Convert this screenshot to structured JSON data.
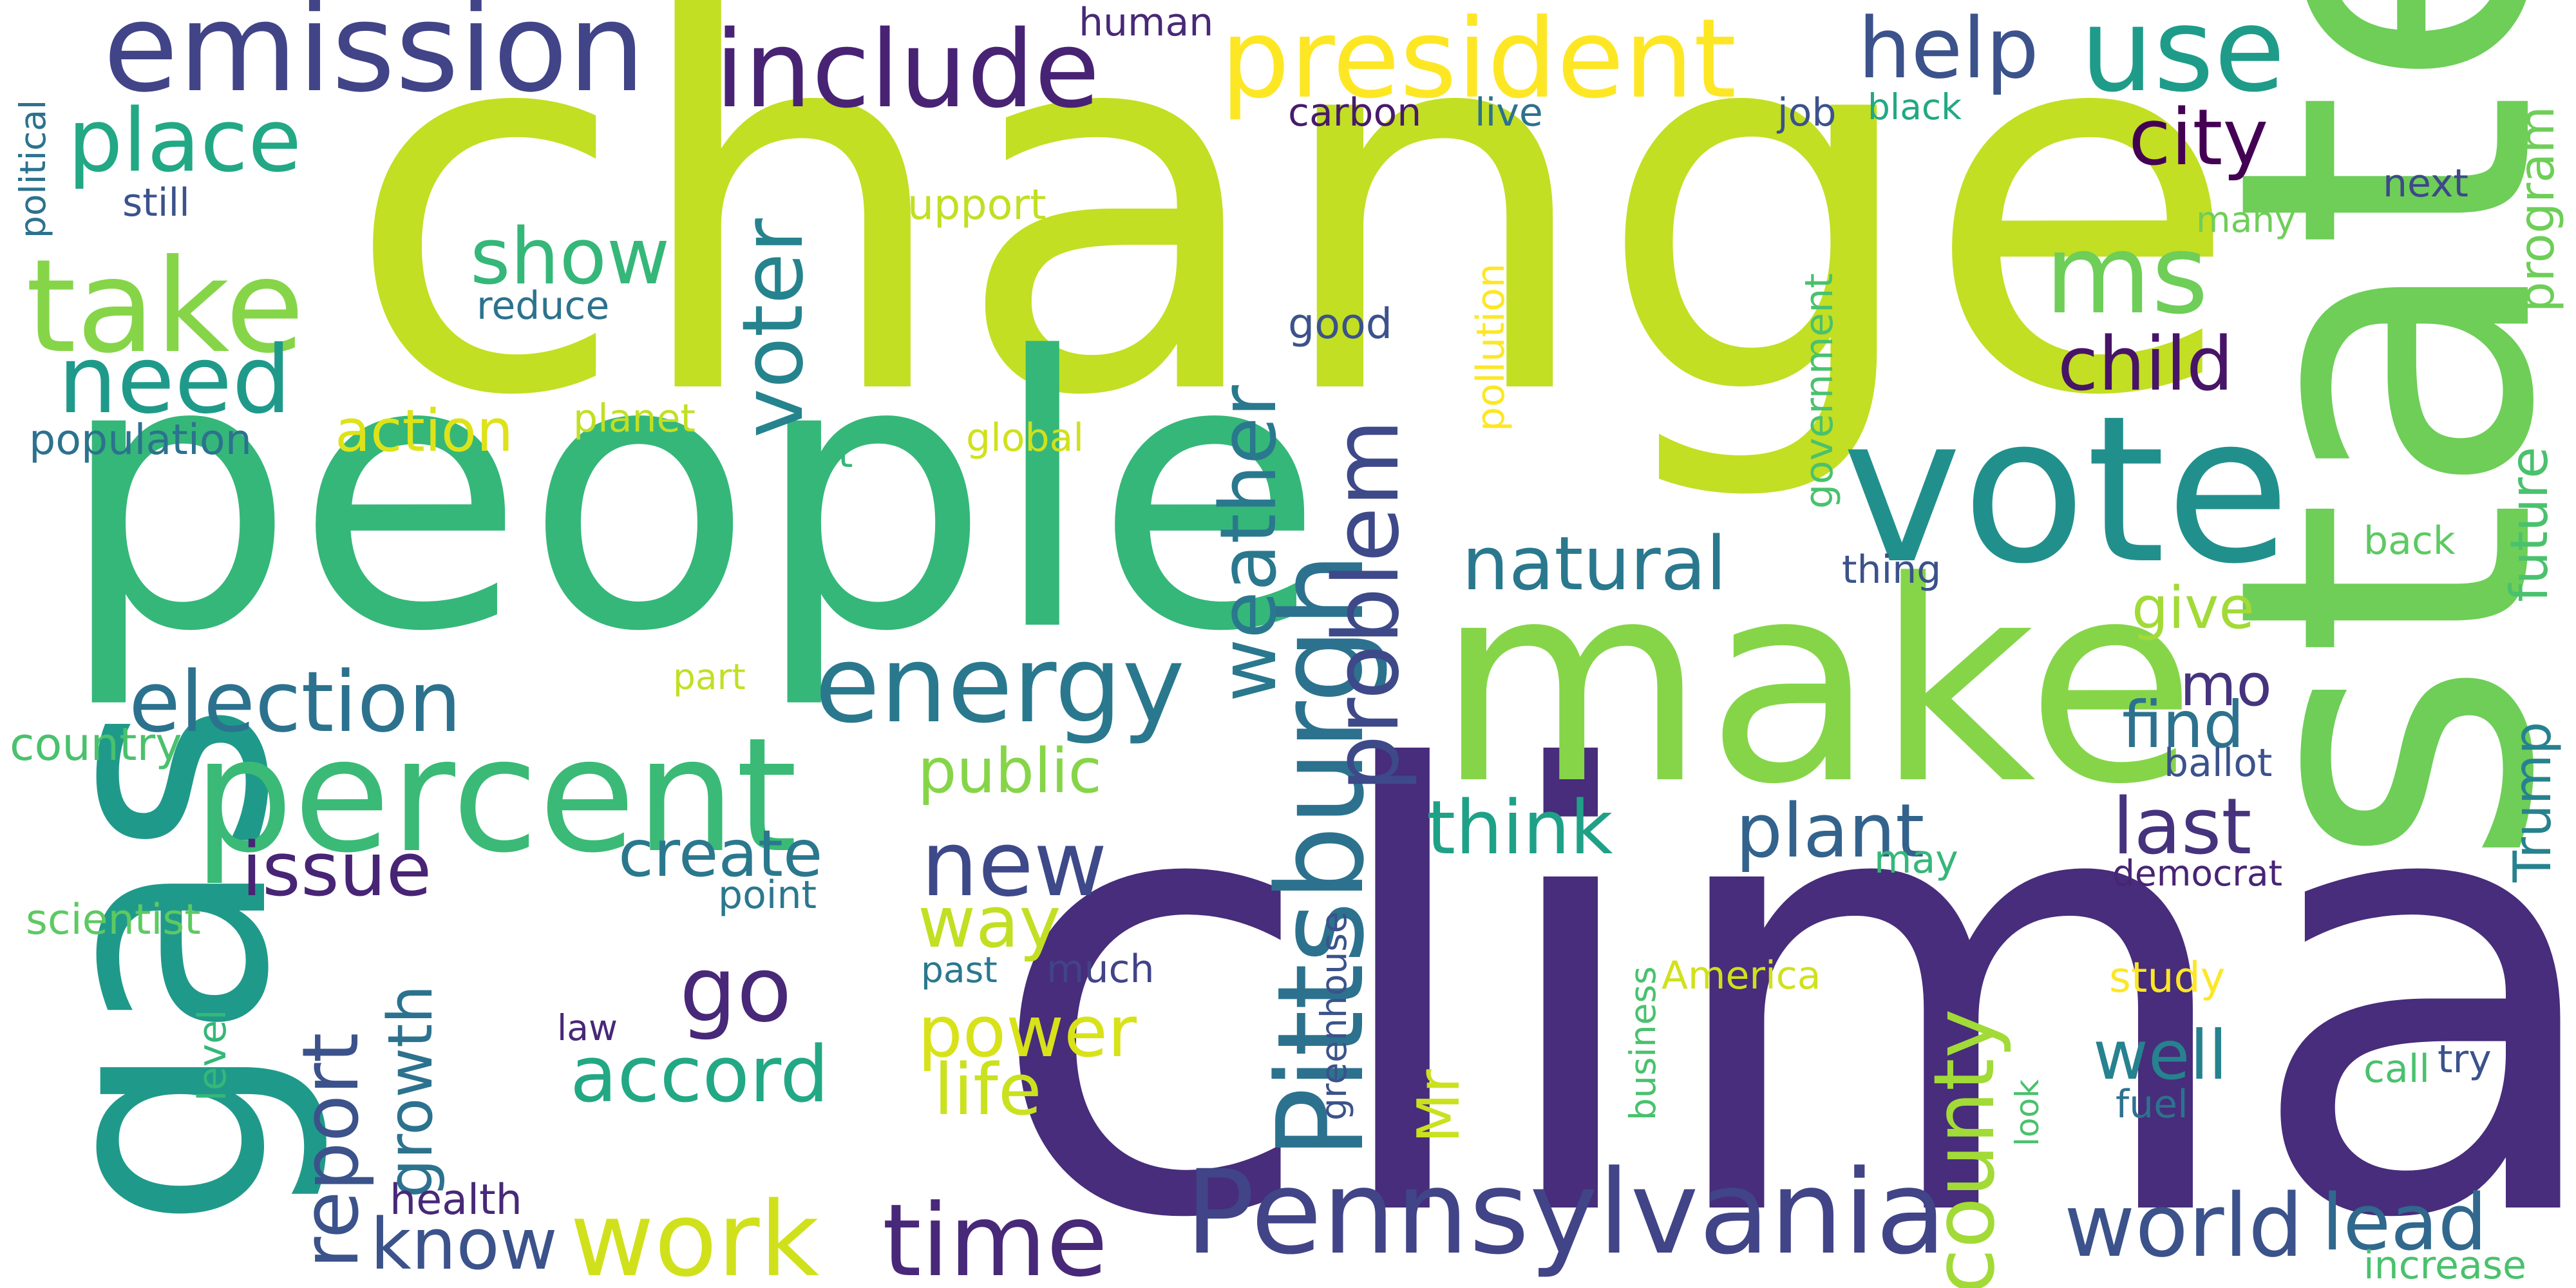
{
  "words": [
    {
      "text": "climate",
      "color": "#472d7b"
    },
    {
      "text": "change",
      "color": "#c2df23"
    },
    {
      "text": "people",
      "color": "#35b779"
    },
    {
      "text": "make",
      "color": "#86d549"
    },
    {
      "text": "state",
      "color": "#6ece58"
    },
    {
      "text": "vote",
      "color": "#21908d"
    },
    {
      "text": "gas",
      "color": "#1f9a8a"
    },
    {
      "text": "Pennsylvania",
      "color": "#414487"
    },
    {
      "text": "percent",
      "color": "#3aba76"
    },
    {
      "text": "president",
      "color": "#fde725"
    },
    {
      "text": "emission",
      "color": "#414487"
    },
    {
      "text": "include",
      "color": "#482374"
    },
    {
      "text": "use",
      "color": "#1e9c89"
    },
    {
      "text": "take",
      "color": "#86d549"
    },
    {
      "text": "Pittsburgh",
      "color": "#2c728e"
    },
    {
      "text": "energy",
      "color": "#2a788e"
    },
    {
      "text": "election",
      "color": "#2c728e"
    },
    {
      "text": "time",
      "color": "#482878"
    },
    {
      "text": "work",
      "color": "#d0e11c"
    },
    {
      "text": "world",
      "color": "#3b528b"
    },
    {
      "text": "lead",
      "color": "#31688e"
    },
    {
      "text": "place",
      "color": "#22a884"
    },
    {
      "text": "city",
      "color": "#440154"
    },
    {
      "text": "help",
      "color": "#3b528b"
    },
    {
      "text": "ms",
      "color": "#6ece58"
    },
    {
      "text": "child",
      "color": "#481467"
    },
    {
      "text": "need",
      "color": "#1f9a8a"
    },
    {
      "text": "show",
      "color": "#35b779"
    },
    {
      "text": "voter",
      "color": "#25838e"
    },
    {
      "text": "weather",
      "color": "#2a788e"
    },
    {
      "text": "problem",
      "color": "#3e4989"
    },
    {
      "text": "natural",
      "color": "#2a788e"
    },
    {
      "text": "plant",
      "color": "#33638d"
    },
    {
      "text": "think",
      "color": "#1fa187"
    },
    {
      "text": "county",
      "color": "#a2da37"
    },
    {
      "text": "issue",
      "color": "#482475"
    },
    {
      "text": "report",
      "color": "#3b528b"
    },
    {
      "text": "new",
      "color": "#3e4989"
    },
    {
      "text": "go",
      "color": "#482878"
    },
    {
      "text": "accord",
      "color": "#22a884"
    },
    {
      "text": "power",
      "color": "#d8e219"
    },
    {
      "text": "life",
      "color": "#cae11f"
    },
    {
      "text": "way",
      "color": "#c2df23"
    },
    {
      "text": "public",
      "color": "#86d549"
    },
    {
      "text": "create",
      "color": "#2a788e"
    },
    {
      "text": "growth",
      "color": "#2c728e"
    },
    {
      "text": "know",
      "color": "#3b528b"
    },
    {
      "text": "find",
      "color": "#2c728e"
    },
    {
      "text": "last",
      "color": "#46337e"
    },
    {
      "text": "well",
      "color": "#26828e"
    },
    {
      "text": "future",
      "color": "#4ac16d"
    },
    {
      "text": "Trump",
      "color": "#26828e"
    },
    {
      "text": "program",
      "color": "#6ece58"
    },
    {
      "text": "give",
      "color": "#a2da37"
    },
    {
      "text": "mo",
      "color": "#46337e"
    },
    {
      "text": "action",
      "color": "#dde318"
    },
    {
      "text": "Mr",
      "color": "#cae11f"
    },
    {
      "text": "population",
      "color": "#2c728e"
    },
    {
      "text": "country",
      "color": "#4ac16d"
    },
    {
      "text": "scientist",
      "color": "#5ec962"
    },
    {
      "text": "health",
      "color": "#482878"
    },
    {
      "text": "human",
      "color": "#482878"
    },
    {
      "text": "carbon",
      "color": "#481a6c"
    },
    {
      "text": "live",
      "color": "#2c728e"
    },
    {
      "text": "job",
      "color": "#3b528b"
    },
    {
      "text": "black",
      "color": "#22a884"
    },
    {
      "text": "next",
      "color": "#3e4989"
    },
    {
      "text": "many",
      "color": "#6ece58"
    },
    {
      "text": "still",
      "color": "#3b528b"
    },
    {
      "text": "support",
      "color": "#c2df23"
    },
    {
      "text": "reduce",
      "color": "#2c728e"
    },
    {
      "text": "good",
      "color": "#3b528b"
    },
    {
      "text": "pollution",
      "color": "#fde725"
    },
    {
      "text": "government",
      "color": "#4ac16d"
    },
    {
      "text": "planet",
      "color": "#c2df23"
    },
    {
      "text": "global",
      "color": "#d0e11c"
    },
    {
      "text": "cut",
      "color": "#35b779"
    },
    {
      "text": "thing",
      "color": "#3b528b"
    },
    {
      "text": "back",
      "color": "#5ec962"
    },
    {
      "text": "part",
      "color": "#c2df23"
    },
    {
      "text": "ballot",
      "color": "#3b528b"
    },
    {
      "text": "may",
      "color": "#35b779"
    },
    {
      "text": "democrat",
      "color": "#482475"
    },
    {
      "text": "point",
      "color": "#2a788e"
    },
    {
      "text": "past",
      "color": "#2a788e"
    },
    {
      "text": "much",
      "color": "#414487"
    },
    {
      "text": "greenhouse",
      "color": "#3b528b"
    },
    {
      "text": "business",
      "color": "#4ac16d"
    },
    {
      "text": "America",
      "color": "#d0e11c"
    },
    {
      "text": "study",
      "color": "#fde725"
    },
    {
      "text": "look",
      "color": "#4ac16d"
    },
    {
      "text": "fuel",
      "color": "#2c728e"
    },
    {
      "text": "call",
      "color": "#4ac16d"
    },
    {
      "text": "try",
      "color": "#3b528b"
    },
    {
      "text": "increase",
      "color": "#4ac16d"
    },
    {
      "text": "law",
      "color": "#482878"
    },
    {
      "text": "level",
      "color": "#35b779"
    },
    {
      "text": "political",
      "color": "#2c728e"
    }
  ]
}
